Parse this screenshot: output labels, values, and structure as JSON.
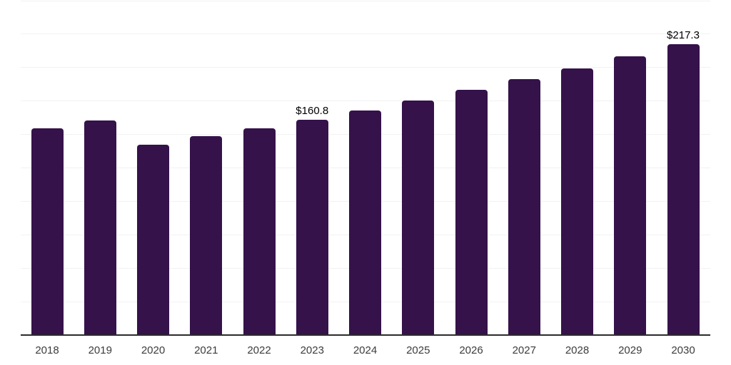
{
  "chart_data": {
    "type": "bar",
    "title": "",
    "xlabel": "",
    "ylabel": "",
    "categories": [
      "2018",
      "2019",
      "2020",
      "2021",
      "2022",
      "2023",
      "2024",
      "2025",
      "2026",
      "2027",
      "2028",
      "2029",
      "2030"
    ],
    "values": [
      154.5,
      160.3,
      142.2,
      148.7,
      154.2,
      160.8,
      167.9,
      175.2,
      183.0,
      191.0,
      199.4,
      208.2,
      217.3
    ],
    "data_labels": [
      "",
      "",
      "",
      "",
      "",
      "$160.8",
      "",
      "",
      "",
      "",
      "",
      "",
      "$217.3"
    ],
    "ylim": [
      0,
      250
    ],
    "gridline_step": 25,
    "grid": true,
    "legend": false,
    "colors": {
      "bar": "#35124a",
      "axis": "#2b2b2b",
      "gridline": "#f2f2f2",
      "tick_label": "#3c3c3c",
      "data_label": "#000000",
      "background": "#ffffff"
    }
  }
}
